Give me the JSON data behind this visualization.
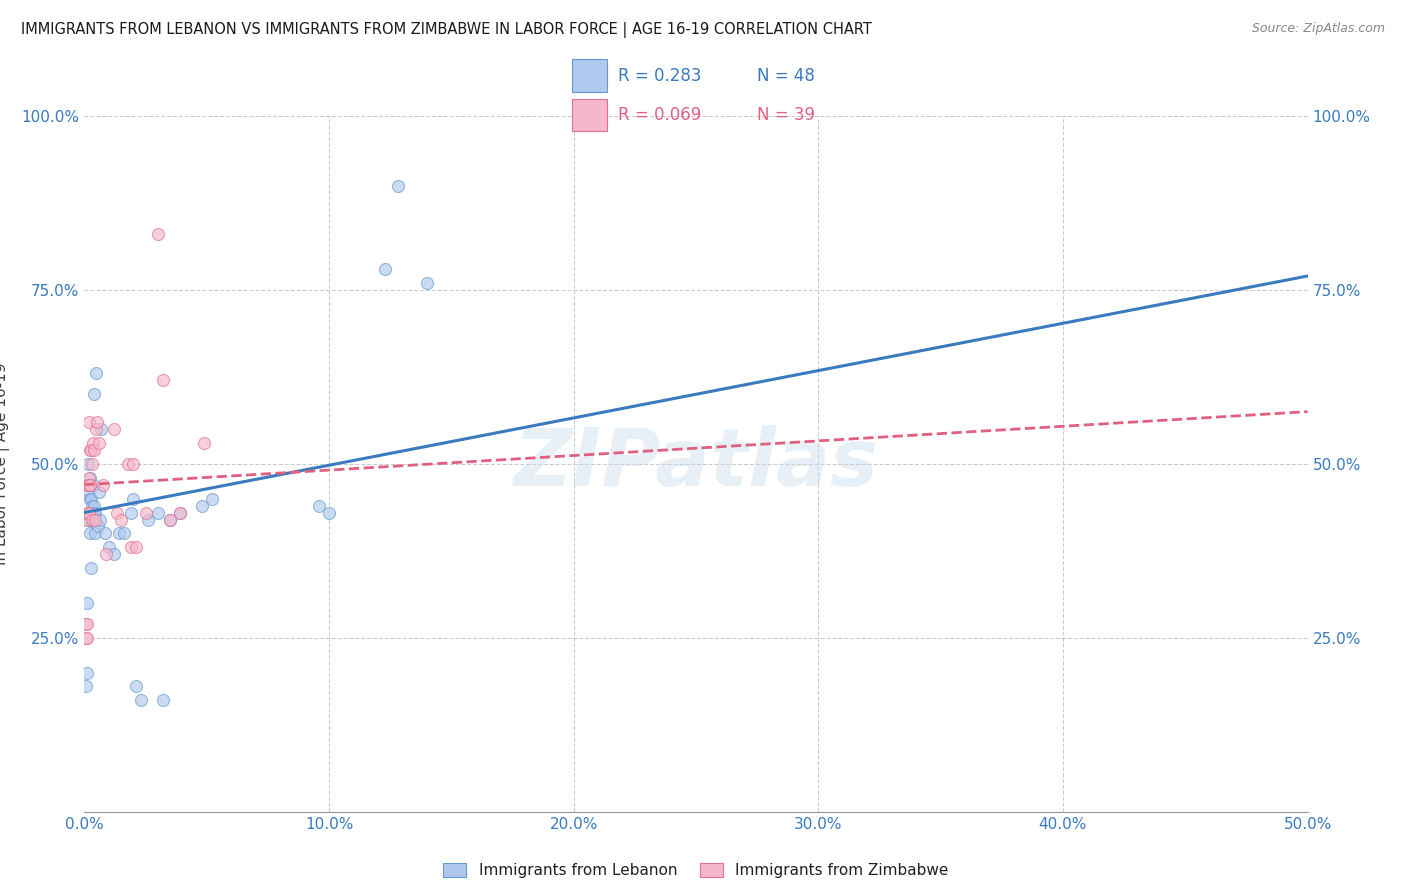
{
  "title": "IMMIGRANTS FROM LEBANON VS IMMIGRANTS FROM ZIMBABWE IN LABOR FORCE | AGE 16-19 CORRELATION CHART",
  "source": "Source: ZipAtlas.com",
  "ylabel": "In Labor Force | Age 16-19",
  "legend_bottom": [
    "Immigrants from Lebanon",
    "Immigrants from Zimbabwe"
  ],
  "legend_r_n": [
    {
      "r": "R = 0.283",
      "n": "N = 48"
    },
    {
      "r": "R = 0.069",
      "n": "N = 39"
    }
  ],
  "xlim": [
    0.0,
    0.5
  ],
  "ylim": [
    0.0,
    1.0
  ],
  "xtick_values": [
    0.0,
    0.1,
    0.2,
    0.3,
    0.4,
    0.5
  ],
  "xtick_labels": [
    "0.0%",
    "10.0%",
    "20.0%",
    "30.0%",
    "40.0%",
    "50.0%"
  ],
  "ytick_values": [
    0.25,
    0.5,
    0.75,
    1.0
  ],
  "ytick_labels": [
    "25.0%",
    "50.0%",
    "75.0%",
    "100.0%"
  ],
  "lebanon_color": "#aec8ee",
  "zimbabwe_color": "#f5b8cb",
  "lebanon_edge": "#6699cc",
  "zimbabwe_edge": "#e07090",
  "line_lebanon_color": "#3a7abf",
  "line_zimbabwe_color": "#e06080",
  "watermark": "ZIPatlas",
  "lebanon_x": [
    0.0008,
    0.001,
    0.0012,
    0.0015,
    0.0015,
    0.0018,
    0.002,
    0.0022,
    0.0022,
    0.0025,
    0.0025,
    0.0028,
    0.0028,
    0.003,
    0.003,
    0.0033,
    0.0035,
    0.0038,
    0.0038,
    0.004,
    0.0042,
    0.0045,
    0.0048,
    0.0055,
    0.006,
    0.0065,
    0.007,
    0.0085,
    0.01,
    0.012,
    0.014,
    0.016,
    0.019,
    0.02,
    0.021,
    0.023,
    0.026,
    0.03,
    0.032,
    0.035,
    0.039,
    0.048,
    0.052,
    0.096,
    0.1,
    0.123,
    0.128,
    0.14
  ],
  "lebanon_y": [
    0.18,
    0.3,
    0.2,
    0.42,
    0.5,
    0.43,
    0.46,
    0.4,
    0.45,
    0.43,
    0.48,
    0.35,
    0.45,
    0.42,
    0.44,
    0.43,
    0.47,
    0.43,
    0.6,
    0.44,
    0.4,
    0.43,
    0.63,
    0.41,
    0.46,
    0.42,
    0.55,
    0.4,
    0.38,
    0.37,
    0.4,
    0.4,
    0.43,
    0.45,
    0.18,
    0.16,
    0.42,
    0.43,
    0.16,
    0.42,
    0.43,
    0.44,
    0.45,
    0.44,
    0.43,
    0.78,
    0.9,
    0.76
  ],
  "zimbabwe_x": [
    0.0005,
    0.0008,
    0.0008,
    0.001,
    0.001,
    0.0013,
    0.0013,
    0.0015,
    0.0015,
    0.0018,
    0.0018,
    0.002,
    0.002,
    0.0023,
    0.0023,
    0.0026,
    0.003,
    0.0033,
    0.0036,
    0.0039,
    0.0045,
    0.0048,
    0.0051,
    0.006,
    0.0075,
    0.009,
    0.012,
    0.0135,
    0.015,
    0.018,
    0.019,
    0.02,
    0.021,
    0.025,
    0.03,
    0.032,
    0.035,
    0.039,
    0.049
  ],
  "zimbabwe_y": [
    0.42,
    0.25,
    0.27,
    0.25,
    0.27,
    0.43,
    0.47,
    0.43,
    0.47,
    0.56,
    0.48,
    0.43,
    0.47,
    0.47,
    0.52,
    0.52,
    0.42,
    0.5,
    0.53,
    0.52,
    0.42,
    0.55,
    0.56,
    0.53,
    0.47,
    0.37,
    0.55,
    0.43,
    0.42,
    0.5,
    0.38,
    0.5,
    0.38,
    0.43,
    0.83,
    0.62,
    0.42,
    0.43,
    0.53
  ],
  "lebanon_line": {
    "x0": 0.0,
    "x1": 0.5,
    "y0": 0.43,
    "y1": 0.77
  },
  "zimbabwe_line": {
    "x0": 0.0,
    "x1": 0.5,
    "y0": 0.47,
    "y1": 0.575
  },
  "marker_size": 75,
  "marker_alpha": 0.65,
  "background_color": "#ffffff",
  "grid_color": "#cccccc",
  "title_color": "#1a1a1a",
  "tick_color": "#3a7abf"
}
